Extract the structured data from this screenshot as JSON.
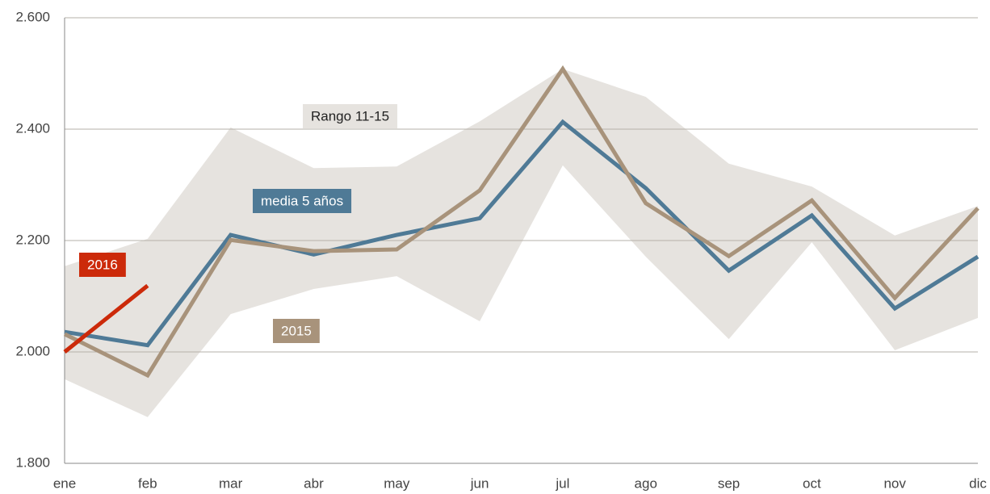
{
  "chart_data": {
    "type": "line",
    "categories": [
      "ene",
      "feb",
      "mar",
      "abr",
      "may",
      "jun",
      "jul",
      "ago",
      "sep",
      "oct",
      "nov",
      "dic"
    ],
    "band": {
      "name": "Rango 11-15",
      "color": "#e6e3df",
      "upper": [
        2154,
        2203,
        2403,
        2330,
        2333,
        2414,
        2508,
        2458,
        2338,
        2297,
        2209,
        2262
      ],
      "lower": [
        1951,
        1883,
        2068,
        2113,
        2136,
        2055,
        2335,
        2171,
        2023,
        2197,
        2003,
        2061
      ]
    },
    "series": [
      {
        "name": "media 5 años",
        "color": "#4f7a96",
        "values": [
          2036,
          2012,
          2210,
          2175,
          2210,
          2240,
          2413,
          2294,
          2146,
          2245,
          2078,
          2171
        ]
      },
      {
        "name": "2015",
        "color": "#a8937b",
        "values": [
          2032,
          1958,
          2201,
          2181,
          2184,
          2290,
          2508,
          2267,
          2172,
          2272,
          2097,
          2258
        ]
      },
      {
        "name": "2016",
        "color": "#cc2a0a",
        "values": [
          2000,
          2119,
          null,
          null,
          null,
          null,
          null,
          null,
          null,
          null,
          null,
          null
        ]
      }
    ],
    "ylim": [
      1800,
      2600
    ],
    "yticks": [
      {
        "value": 1800,
        "label": "1.800"
      },
      {
        "value": 2000,
        "label": "2.000"
      },
      {
        "value": 2200,
        "label": "2.200"
      },
      {
        "value": 2400,
        "label": "2.400"
      },
      {
        "value": 2600,
        "label": "2.600"
      }
    ],
    "grid": true
  }
}
